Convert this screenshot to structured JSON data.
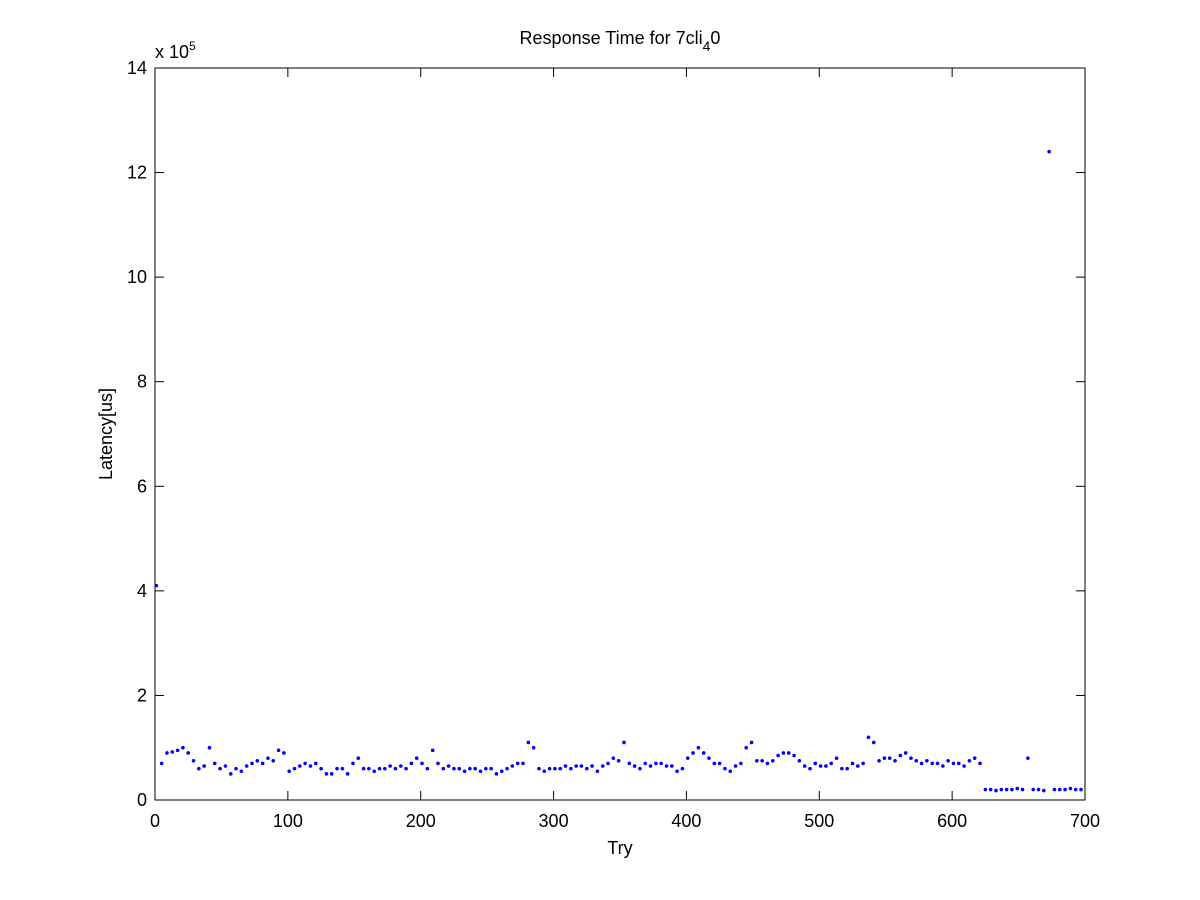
{
  "chart_data": {
    "type": "scatter",
    "title": "Response Time for 7cli",
    "title_sub": "4",
    "title_end": "0",
    "xlabel": "Try",
    "ylabel": "Latency[us]",
    "multiplier": "x 10",
    "multiplier_exp": "5",
    "xlim": [
      0,
      700
    ],
    "xticks": [
      0,
      100,
      200,
      300,
      400,
      500,
      600,
      700
    ],
    "ylim": [
      0,
      14
    ],
    "yticks": [
      0,
      2,
      4,
      6,
      8,
      10,
      12,
      14
    ],
    "grid": false,
    "series": [
      {
        "name": "Latency",
        "color": "#0000ff",
        "x": [
          1,
          5,
          9,
          13,
          17,
          21,
          25,
          29,
          33,
          37,
          41,
          45,
          49,
          53,
          57,
          61,
          65,
          69,
          73,
          77,
          81,
          85,
          89,
          93,
          97,
          101,
          105,
          109,
          113,
          117,
          121,
          125,
          129,
          133,
          137,
          141,
          145,
          149,
          153,
          157,
          161,
          165,
          169,
          173,
          177,
          181,
          185,
          189,
          193,
          197,
          201,
          205,
          209,
          213,
          217,
          221,
          225,
          229,
          233,
          237,
          241,
          245,
          249,
          253,
          257,
          261,
          265,
          269,
          273,
          277,
          281,
          285,
          289,
          293,
          297,
          301,
          305,
          309,
          313,
          317,
          321,
          325,
          329,
          333,
          337,
          341,
          345,
          349,
          353,
          357,
          361,
          365,
          369,
          373,
          377,
          381,
          385,
          389,
          393,
          397,
          401,
          405,
          409,
          413,
          417,
          421,
          425,
          429,
          433,
          437,
          441,
          445,
          449,
          453,
          457,
          461,
          465,
          469,
          473,
          477,
          481,
          485,
          489,
          493,
          497,
          501,
          505,
          509,
          513,
          517,
          521,
          525,
          529,
          533,
          537,
          541,
          545,
          549,
          553,
          557,
          561,
          565,
          569,
          573,
          577,
          581,
          585,
          589,
          593,
          597,
          601,
          605,
          609,
          613,
          617,
          621,
          625,
          629,
          633,
          637,
          641,
          645,
          649,
          653,
          657,
          661,
          665,
          669,
          673,
          677,
          681,
          685,
          689,
          693,
          697
        ],
        "values": [
          4.1,
          0.7,
          0.9,
          0.92,
          0.95,
          1.0,
          0.9,
          0.75,
          0.6,
          0.65,
          1.0,
          0.7,
          0.6,
          0.65,
          0.5,
          0.6,
          0.55,
          0.65,
          0.7,
          0.75,
          0.7,
          0.8,
          0.75,
          0.95,
          0.9,
          0.55,
          0.6,
          0.65,
          0.7,
          0.65,
          0.7,
          0.6,
          0.5,
          0.5,
          0.6,
          0.6,
          0.5,
          0.7,
          0.8,
          0.6,
          0.6,
          0.55,
          0.6,
          0.6,
          0.65,
          0.6,
          0.65,
          0.6,
          0.7,
          0.8,
          0.7,
          0.6,
          0.95,
          0.7,
          0.6,
          0.65,
          0.6,
          0.6,
          0.55,
          0.6,
          0.6,
          0.55,
          0.6,
          0.6,
          0.5,
          0.55,
          0.6,
          0.65,
          0.7,
          0.7,
          1.1,
          1.0,
          0.6,
          0.55,
          0.6,
          0.6,
          0.6,
          0.65,
          0.6,
          0.65,
          0.65,
          0.6,
          0.65,
          0.55,
          0.65,
          0.7,
          0.8,
          0.75,
          1.1,
          0.7,
          0.65,
          0.6,
          0.7,
          0.65,
          0.7,
          0.7,
          0.65,
          0.65,
          0.55,
          0.6,
          0.8,
          0.9,
          1.0,
          0.9,
          0.8,
          0.7,
          0.7,
          0.6,
          0.55,
          0.65,
          0.7,
          1.0,
          1.1,
          0.75,
          0.75,
          0.7,
          0.75,
          0.85,
          0.9,
          0.9,
          0.85,
          0.75,
          0.65,
          0.6,
          0.7,
          0.65,
          0.65,
          0.7,
          0.8,
          0.6,
          0.6,
          0.7,
          0.65,
          0.7,
          1.2,
          1.1,
          0.75,
          0.8,
          0.8,
          0.75,
          0.85,
          0.9,
          0.8,
          0.75,
          0.7,
          0.75,
          0.7,
          0.7,
          0.65,
          0.75,
          0.7,
          0.7,
          0.65,
          0.75,
          0.8,
          0.7,
          0.2,
          0.2,
          0.18,
          0.2,
          0.2,
          0.2,
          0.22,
          0.2,
          0.8,
          0.2,
          0.2,
          0.18,
          12.4,
          0.2,
          0.2,
          0.2,
          0.22,
          0.2,
          0.2
        ]
      }
    ]
  }
}
